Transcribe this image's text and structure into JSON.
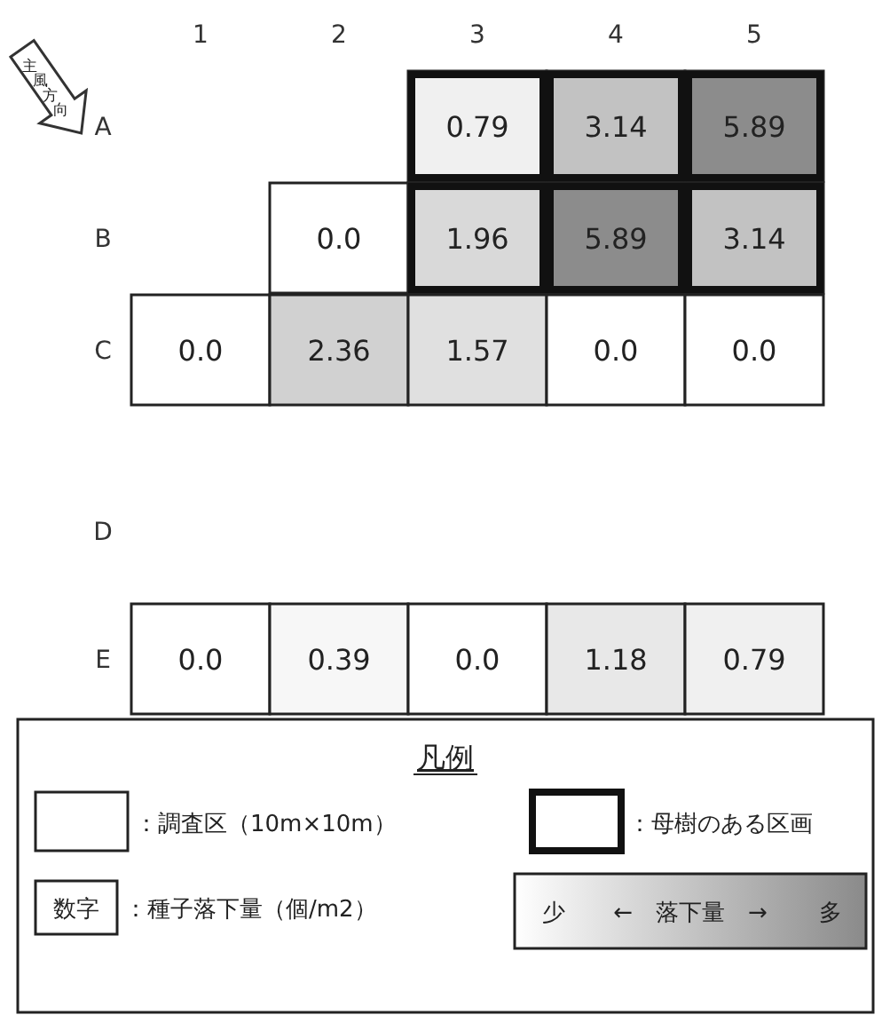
{
  "chart_data": {
    "type": "heatmap",
    "categories": [
      "1",
      "2",
      "3",
      "4",
      "5"
    ],
    "y_categories": [
      "A",
      "B",
      "C",
      "D",
      "E"
    ],
    "cells": [
      [
        null,
        null,
        0.79,
        3.14,
        5.89
      ],
      [
        null,
        0.0,
        1.96,
        5.89,
        3.14
      ],
      [
        0.0,
        2.36,
        1.57,
        0.0,
        0.0
      ],
      [
        null,
        null,
        null,
        null,
        null
      ],
      [
        0.0,
        0.39,
        0.0,
        1.18,
        0.79
      ]
    ],
    "cell_labels": [
      [
        null,
        null,
        "0.79",
        "3.14",
        "5.89"
      ],
      [
        null,
        "0.0",
        "1.96",
        "5.89",
        "3.14"
      ],
      [
        "0.0",
        "2.36",
        "1.57",
        "0.0",
        "0.0"
      ],
      [
        null,
        null,
        null,
        null,
        null
      ],
      [
        "0.0",
        "0.39",
        "0.0",
        "1.18",
        "0.79"
      ]
    ],
    "annotations": [
      "主風方向",
      "凡例",
      "：調査区（10m×10m）",
      "：母樹のある区画",
      "数字",
      "：種子落下量（個/m2）",
      "少",
      "←　落下量　→",
      "多"
    ]
  }
}
